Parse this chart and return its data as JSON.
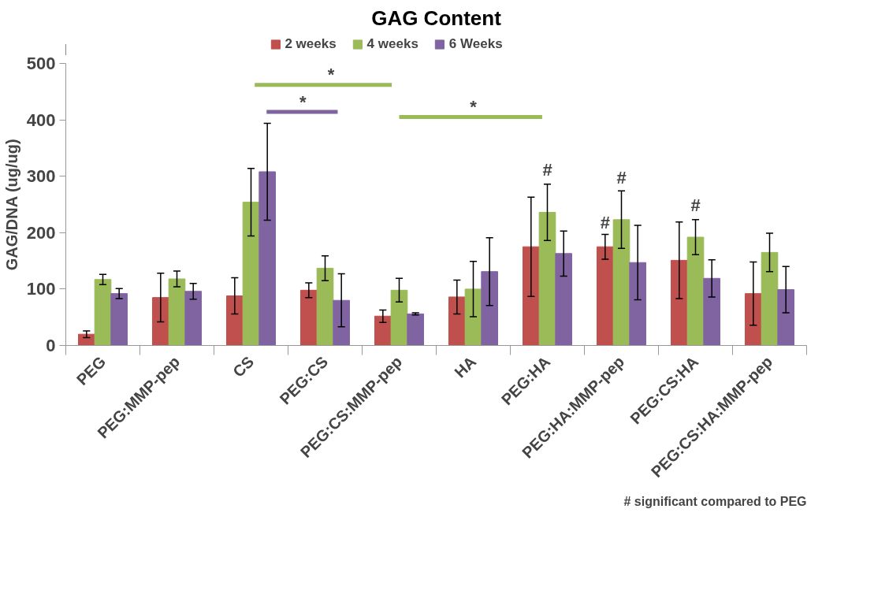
{
  "chart_data": {
    "type": "bar",
    "title": "GAG Content",
    "ylabel": "GAG/DNA (ug/ug)",
    "categories": [
      "PEG",
      "PEG:MMP-pep",
      "CS",
      "PEG:CS",
      "PEG:CS:MMP-pep",
      "HA",
      "PEG:HA",
      "PEG:HA:MMP-pep",
      "PEG:CS:HA",
      "PEG:CS:HA:MMP-pep"
    ],
    "series": [
      {
        "name": "2 weeks",
        "color": "#c0504d",
        "values": [
          20,
          85,
          88,
          98,
          52,
          86,
          175,
          175,
          151,
          92
        ],
        "errors": [
          6,
          43,
          32,
          13,
          11,
          30,
          88,
          22,
          68,
          56
        ]
      },
      {
        "name": "4 weeks",
        "color": "#9bbb59",
        "values": [
          117,
          118,
          254,
          137,
          98,
          100,
          236,
          223,
          192,
          165
        ],
        "errors": [
          9,
          14,
          60,
          22,
          21,
          49,
          50,
          51,
          31,
          34
        ]
      },
      {
        "name": "6 Weeks",
        "color": "#8064a2",
        "values": [
          92,
          96,
          308,
          80,
          56,
          131,
          163,
          147,
          119,
          99
        ],
        "errors": [
          9,
          14,
          86,
          47,
          2,
          60,
          40,
          66,
          33,
          41
        ]
      }
    ],
    "ylim": [
      0,
      500
    ],
    "yticks": [
      0,
      100,
      200,
      300,
      400,
      500
    ],
    "grid": false,
    "legend": "top",
    "annotations": [
      "*",
      "*",
      "*",
      "#",
      "#",
      "#",
      "#",
      "# significant compared to PEG"
    ]
  }
}
